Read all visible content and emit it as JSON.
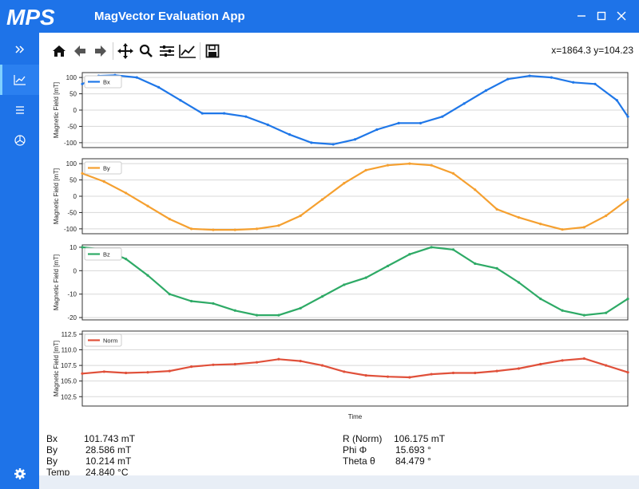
{
  "app": {
    "title": "MagVector Evaluation App",
    "logo_text": "MPS",
    "brand_color": "#1e73e8"
  },
  "window_controls": {
    "minimize_icon": "minimize-icon",
    "maximize_icon": "maximize-icon",
    "close_icon": "close-icon"
  },
  "sidebar": {
    "items": [
      {
        "icon": "double-chevron-right-icon",
        "active": false
      },
      {
        "icon": "line-chart-icon",
        "active": true
      },
      {
        "icon": "list-icon",
        "active": false
      },
      {
        "icon": "cube-icon",
        "active": false
      }
    ],
    "bottom_icon": "gear-icon"
  },
  "toolbar": {
    "tools": [
      "home-icon",
      "back-arrow-icon",
      "forward-arrow-icon",
      "pan-icon",
      "zoom-icon",
      "configure-subplots-icon",
      "edit-axis-icon",
      "save-icon"
    ],
    "coordinates": "x=1864.3 y=104.23"
  },
  "chart_data": [
    {
      "type": "line",
      "series": [
        {
          "name": "Bx",
          "color": "#1f77e8"
        }
      ],
      "ylabel": "Magnetic Field [mT]",
      "yticks": [
        "100",
        "50",
        "0",
        "-50",
        "-100"
      ],
      "ylim": [
        -115,
        115
      ],
      "x": [
        0,
        3,
        6,
        10,
        14,
        18,
        22,
        26,
        30,
        34,
        38,
        42,
        46,
        50,
        54,
        58,
        62,
        66,
        70,
        74,
        78,
        82,
        86,
        90,
        94,
        98,
        100
      ],
      "values": [
        80,
        105,
        107,
        100,
        70,
        30,
        -10,
        -10,
        -20,
        -45,
        -75,
        -100,
        -105,
        -90,
        -60,
        -40,
        -40,
        -20,
        20,
        60,
        95,
        105,
        100,
        85,
        80,
        30,
        -20
      ]
    },
    {
      "type": "line",
      "series": [
        {
          "name": "By",
          "color": "#f5a030"
        }
      ],
      "ylabel": "Magnetic Field [mT]",
      "yticks": [
        "100",
        "50",
        "0",
        "-50",
        "-100"
      ],
      "ylim": [
        -115,
        115
      ],
      "x": [
        0,
        4,
        8,
        12,
        16,
        20,
        24,
        28,
        32,
        36,
        40,
        44,
        48,
        52,
        56,
        60,
        64,
        68,
        72,
        76,
        80,
        84,
        88,
        92,
        96,
        100
      ],
      "values": [
        70,
        45,
        10,
        -30,
        -70,
        -100,
        -103,
        -103,
        -100,
        -90,
        -60,
        -10,
        40,
        80,
        95,
        100,
        95,
        70,
        20,
        -40,
        -65,
        -85,
        -102,
        -95,
        -60,
        -10
      ]
    },
    {
      "type": "line",
      "series": [
        {
          "name": "Bz",
          "color": "#2eaa66"
        }
      ],
      "ylabel": "Magnetic Field [mT]",
      "yticks": [
        "10",
        "0",
        "-10",
        "-20"
      ],
      "ylim": [
        -21,
        11
      ],
      "x": [
        0,
        4,
        8,
        12,
        16,
        20,
        24,
        28,
        32,
        36,
        40,
        44,
        48,
        52,
        56,
        60,
        64,
        68,
        72,
        76,
        80,
        84,
        88,
        92,
        96,
        100
      ],
      "values": [
        10,
        9,
        5,
        -2,
        -10,
        -13,
        -14,
        -17,
        -19,
        -19,
        -16,
        -11,
        -6,
        -3,
        2,
        7,
        10,
        9,
        3,
        1,
        -5,
        -12,
        -17,
        -19,
        -18,
        -12
      ]
    },
    {
      "type": "line",
      "series": [
        {
          "name": "Norm",
          "color": "#e0503a"
        }
      ],
      "ylabel": "Magnetic Field [mT]",
      "xlabel": "Time",
      "yticks": [
        "112.5",
        "110.0",
        "107.5",
        "105.0",
        "102.5"
      ],
      "ylim": [
        101,
        113
      ],
      "x": [
        0,
        4,
        8,
        12,
        16,
        20,
        24,
        28,
        32,
        36,
        40,
        44,
        48,
        52,
        56,
        60,
        64,
        68,
        72,
        76,
        80,
        84,
        88,
        92,
        96,
        100
      ],
      "values": [
        106.2,
        106.5,
        106.3,
        106.4,
        106.6,
        107.3,
        107.6,
        107.7,
        108.0,
        108.5,
        108.2,
        107.5,
        106.5,
        105.9,
        105.7,
        105.6,
        106.1,
        106.3,
        106.3,
        106.6,
        107.0,
        107.7,
        108.3,
        108.6,
        107.5,
        106.4
      ]
    }
  ],
  "readouts": {
    "left": [
      {
        "label": "Bx",
        "value": "101.743 mT"
      },
      {
        "label": "By",
        "value": "28.586 mT"
      },
      {
        "label": "By",
        "value": "10.214 mT"
      },
      {
        "label": "Temp",
        "value": "24.840 °C"
      }
    ],
    "right": [
      {
        "label": "R (Norm)",
        "value": "106.175 mT"
      },
      {
        "label": "Phi Φ",
        "value": "15.693 °"
      },
      {
        "label": "Theta θ",
        "value": "84.479 °"
      }
    ]
  }
}
